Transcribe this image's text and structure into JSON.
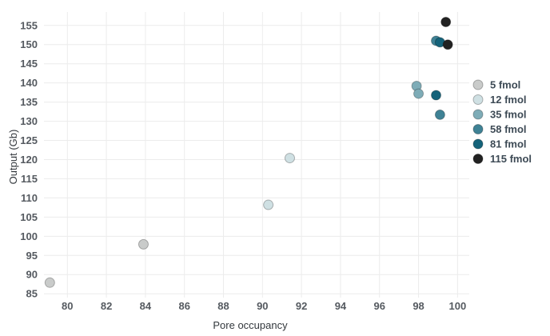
{
  "chart_data": {
    "type": "scatter",
    "title": "",
    "xlabel": "Pore occupancy",
    "ylabel": "Output (Gb)",
    "xlim": [
      78.8,
      100.6
    ],
    "ylim": [
      84,
      158.5
    ],
    "xticks": [
      80,
      82,
      84,
      86,
      88,
      90,
      92,
      94,
      96,
      98,
      100
    ],
    "yticks": [
      85,
      90,
      95,
      100,
      105,
      110,
      115,
      120,
      125,
      130,
      135,
      140,
      145,
      150,
      155
    ],
    "grid": true,
    "legend_position": "right",
    "series": [
      {
        "name": "5 fmol",
        "color": "#c9cbca",
        "points": [
          [
            79.1,
            87.9
          ],
          [
            83.9,
            97.9
          ]
        ]
      },
      {
        "name": "12 fmol",
        "color": "#cfe0e3",
        "points": [
          [
            90.3,
            108.2
          ],
          [
            91.4,
            120.4
          ]
        ]
      },
      {
        "name": "35 fmol",
        "color": "#7eacb7",
        "points": [
          [
            97.9,
            139.2
          ],
          [
            98.0,
            137.2
          ]
        ]
      },
      {
        "name": "58 fmol",
        "color": "#3f8295",
        "points": [
          [
            98.9,
            151.0
          ],
          [
            99.1,
            131.7
          ]
        ]
      },
      {
        "name": "81 fmol",
        "color": "#15637a",
        "points": [
          [
            98.9,
            136.8
          ],
          [
            99.1,
            150.6
          ]
        ]
      },
      {
        "name": "115 fmol",
        "color": "#222222",
        "points": [
          [
            99.4,
            155.9
          ],
          [
            99.5,
            150.0
          ]
        ]
      }
    ]
  }
}
